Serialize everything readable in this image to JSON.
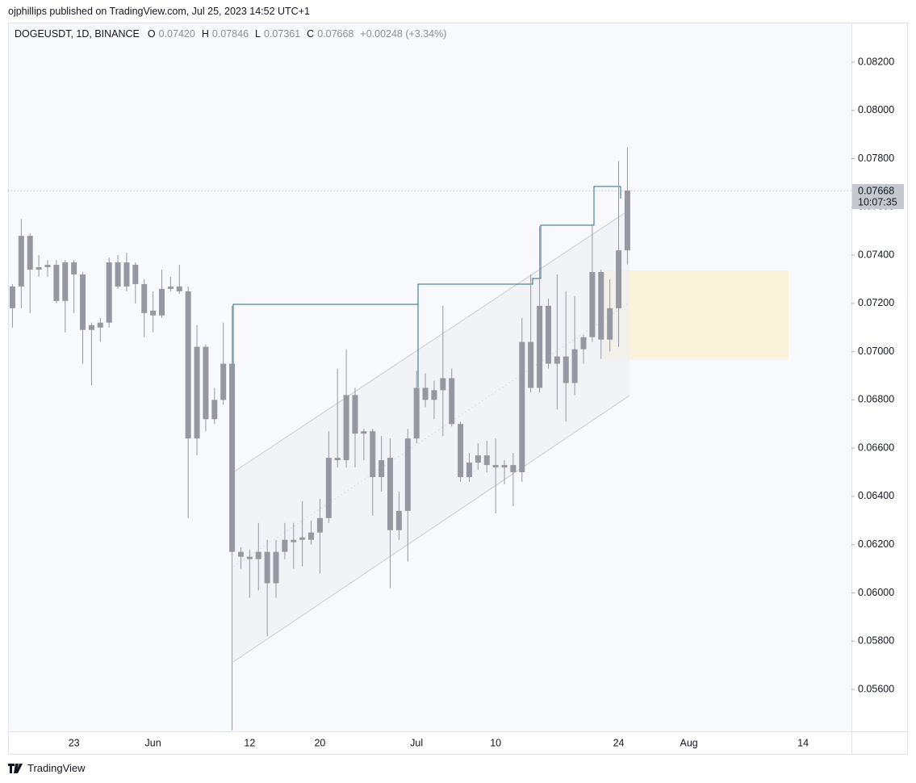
{
  "header": {
    "attribution": "ojphillips published on TradingView.com, Jul 25, 2023 14:52 UTC+1",
    "symbol": "DOGEUSDT, 1D, BINANCE",
    "ohlc": [
      {
        "label": "O",
        "value": "0.07420"
      },
      {
        "label": "H",
        "value": "0.07846"
      },
      {
        "label": "L",
        "value": "0.07361"
      },
      {
        "label": "C",
        "value": "0.07668"
      }
    ],
    "change": "+0.00248 (+3.34%)"
  },
  "price_badge": {
    "price": "0.07668",
    "countdown": "10:07:35"
  },
  "footer": {
    "brand": "TradingView"
  },
  "chart_data": {
    "type": "candlestick",
    "color": "#9598a1",
    "grid": false,
    "categories": [
      null,
      null,
      null,
      null,
      null,
      null,
      null,
      "23",
      null,
      null,
      null,
      null,
      null,
      null,
      null,
      null,
      "Jun",
      null,
      null,
      null,
      null,
      null,
      null,
      null,
      null,
      null,
      null,
      "12",
      null,
      null,
      null,
      null,
      null,
      null,
      null,
      "20",
      null,
      null,
      null,
      null,
      null,
      null,
      null,
      null,
      null,
      null,
      "Jul",
      null,
      null,
      null,
      null,
      null,
      null,
      null,
      null,
      "10",
      null,
      null,
      null,
      null,
      null,
      null,
      null,
      null,
      null,
      null,
      null,
      null,
      null,
      "24",
      null,
      null,
      null,
      null,
      null,
      null,
      null,
      "Aug",
      null,
      null,
      null,
      null,
      null,
      null,
      null,
      null,
      null,
      null,
      null,
      null,
      "14",
      null,
      null,
      null,
      null,
      null
    ],
    "open": [
      0.0718,
      0.0727,
      0.0748,
      0.0734,
      0.0735,
      0.0736,
      0.0721,
      0.0737,
      0.0732,
      0.0709,
      0.071,
      0.0712,
      0.0737,
      0.0727,
      0.0736,
      0.0728,
      0.0717,
      0.0715,
      0.0726,
      0.0727,
      0.0725,
      0.0664,
      0.0702,
      0.0672,
      0.068,
      0.0695,
      0.0617,
      0.0615,
      0.0614,
      0.0617,
      0.0604,
      0.0617,
      0.0621,
      0.0622,
      0.0622,
      0.0625,
      0.0631,
      0.0656,
      0.0655,
      0.0682,
      0.0667,
      0.0667,
      0.0648,
      0.0656,
      0.0626,
      0.0634,
      0.0664,
      0.0685,
      0.068,
      0.0684,
      0.0689,
      0.067,
      0.0648,
      0.0654,
      0.0657,
      0.0653,
      0.0653,
      0.0653,
      0.065,
      0.0704,
      0.0685,
      0.0719,
      0.0695,
      0.0698,
      0.0687,
      0.0701,
      0.0706,
      0.0733,
      0.0705,
      0.0718,
      0.0742,
      null,
      null,
      null,
      null,
      null,
      null,
      null,
      null,
      null,
      null,
      null,
      null,
      null,
      null,
      null,
      null,
      null,
      null,
      null,
      null,
      null,
      null,
      null,
      null,
      null
    ],
    "high": [
      0.0728,
      0.0755,
      0.0749,
      0.074,
      0.0738,
      0.0738,
      0.0738,
      0.0738,
      0.0733,
      0.0712,
      0.0714,
      0.0739,
      0.074,
      0.0741,
      0.0737,
      0.073,
      0.0725,
      0.0734,
      0.0731,
      0.0736,
      0.0727,
      0.0711,
      0.0703,
      0.0685,
      0.0712,
      0.0719,
      0.0619,
      0.0618,
      0.0629,
      0.0622,
      0.0622,
      0.0629,
      0.0629,
      0.0638,
      0.063,
      0.0639,
      0.0667,
      0.0693,
      0.0701,
      0.0685,
      0.0668,
      0.0668,
      0.0665,
      0.0664,
      0.0642,
      0.0668,
      0.0692,
      0.0691,
      0.0688,
      0.0719,
      0.0693,
      0.0671,
      0.0658,
      0.0662,
      0.0663,
      0.0664,
      0.0655,
      0.0658,
      0.0714,
      0.0732,
      0.0752,
      0.0722,
      0.0732,
      0.0725,
      0.0723,
      0.0707,
      0.0753,
      0.0734,
      0.073,
      0.0779,
      0.07846,
      null,
      null,
      null,
      null,
      null,
      null,
      null,
      null,
      null,
      null,
      null,
      null,
      null,
      null,
      null,
      null,
      null,
      null,
      null,
      null,
      null,
      null,
      null,
      null,
      null
    ],
    "low": [
      0.071,
      0.0718,
      0.0716,
      0.0731,
      0.0731,
      0.072,
      0.0708,
      0.0716,
      0.0695,
      0.0686,
      0.0704,
      0.071,
      0.0726,
      0.0725,
      0.072,
      0.0706,
      0.0708,
      0.0714,
      0.0725,
      0.0724,
      0.0631,
      0.0657,
      0.0667,
      0.067,
      0.0678,
      0.0543,
      0.061,
      0.0598,
      0.0601,
      0.0582,
      0.0598,
      0.0614,
      0.061,
      0.0611,
      0.062,
      0.0608,
      0.0629,
      0.0652,
      0.0652,
      0.0652,
      0.0655,
      0.0632,
      0.0642,
      0.0602,
      0.0622,
      0.0613,
      0.0662,
      0.0677,
      0.0672,
      0.0665,
      0.0669,
      0.0646,
      0.0646,
      0.0651,
      0.065,
      0.0633,
      0.0645,
      0.0636,
      0.0646,
      0.0683,
      0.0683,
      0.0693,
      0.0676,
      0.0671,
      0.0682,
      0.0695,
      0.0704,
      0.0697,
      0.07,
      0.0702,
      0.07361,
      null,
      null,
      null,
      null,
      null,
      null,
      null,
      null,
      null,
      null,
      null,
      null,
      null,
      null,
      null,
      null,
      null,
      null,
      null,
      null,
      null,
      null,
      null,
      null,
      null
    ],
    "close": [
      0.0727,
      0.0748,
      0.0734,
      0.0735,
      0.0736,
      0.0721,
      0.0737,
      0.0732,
      0.0709,
      0.0711,
      0.0712,
      0.0737,
      0.0727,
      0.0737,
      0.0728,
      0.0716,
      0.0715,
      0.0726,
      0.0727,
      0.0725,
      0.0664,
      0.0702,
      0.0672,
      0.068,
      0.0695,
      0.0617,
      0.0615,
      0.0614,
      0.0617,
      0.0604,
      0.0617,
      0.0622,
      0.0622,
      0.0623,
      0.0625,
      0.0631,
      0.0656,
      0.0655,
      0.0682,
      0.0666,
      0.0666,
      0.0648,
      0.0655,
      0.0626,
      0.0634,
      0.0664,
      0.0685,
      0.068,
      0.0684,
      0.0689,
      0.067,
      0.0648,
      0.0654,
      0.0657,
      0.0653,
      0.0652,
      0.0652,
      0.065,
      0.0704,
      0.0685,
      0.0719,
      0.0695,
      0.0698,
      0.0687,
      0.0701,
      0.0706,
      0.0733,
      0.0705,
      0.0718,
      0.0742,
      0.07668,
      null,
      null,
      null,
      null,
      null,
      null,
      null,
      null,
      null,
      null,
      null,
      null,
      null,
      null,
      null,
      null,
      null,
      null,
      null,
      null,
      null,
      null,
      null,
      null,
      null
    ],
    "ylim": [
      0.05426,
      0.08364
    ],
    "yticks": [
      {
        "value": 0.056,
        "label": "0.05600"
      },
      {
        "value": 0.058,
        "label": "0.05800"
      },
      {
        "value": 0.06,
        "label": "0.06000"
      },
      {
        "value": 0.062,
        "label": "0.06200"
      },
      {
        "value": 0.064,
        "label": "0.06400"
      },
      {
        "value": 0.066,
        "label": "0.06600"
      },
      {
        "value": 0.068,
        "label": "0.06800"
      },
      {
        "value": 0.07,
        "label": "0.07000"
      },
      {
        "value": 0.072,
        "label": "0.07200"
      },
      {
        "value": 0.074,
        "label": "0.07400"
      },
      {
        "value": 0.076,
        "label": "0.07600"
      },
      {
        "value": 0.078,
        "label": "0.07800"
      },
      {
        "value": 0.08,
        "label": "0.08000"
      },
      {
        "value": 0.082,
        "label": "0.08200"
      }
    ]
  }
}
